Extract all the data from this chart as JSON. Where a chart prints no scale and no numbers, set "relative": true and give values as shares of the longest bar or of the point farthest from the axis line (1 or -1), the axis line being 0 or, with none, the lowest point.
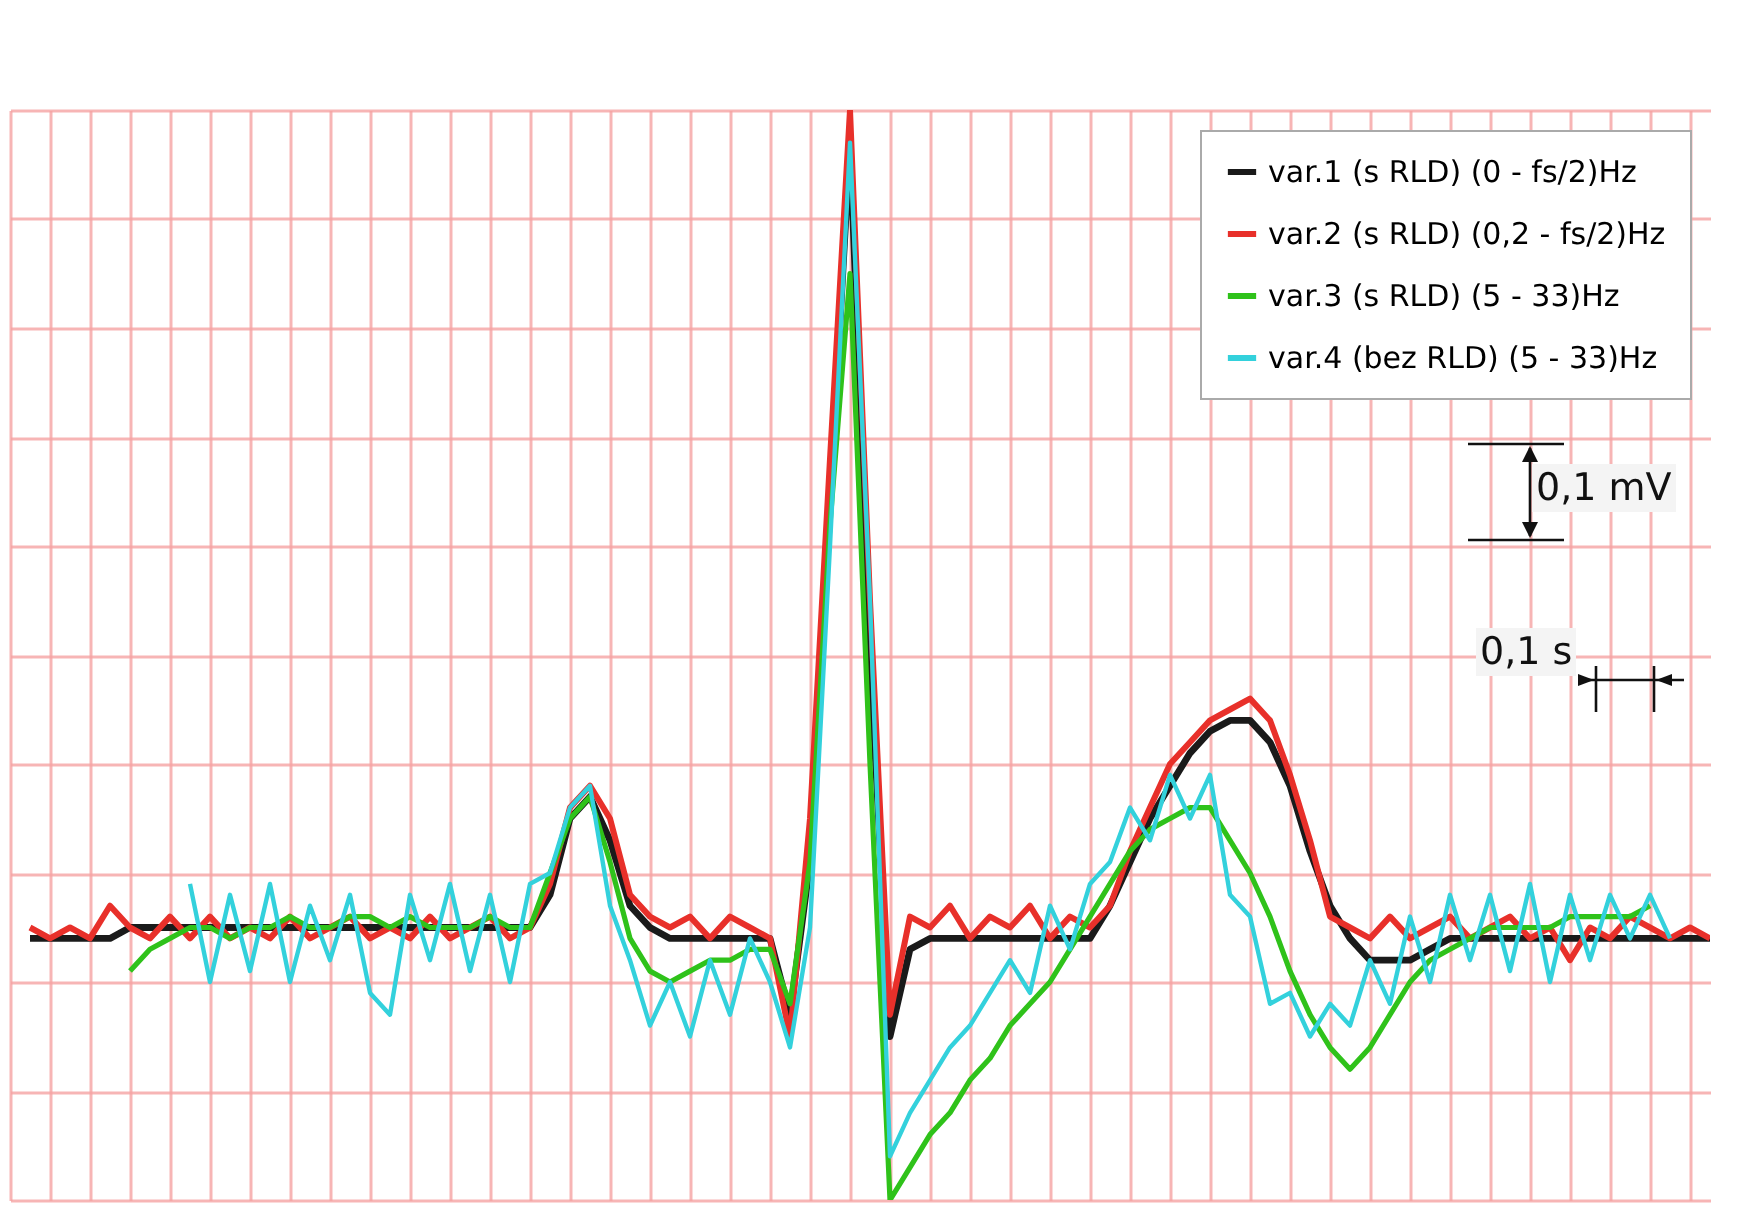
{
  "chart_data": {
    "type": "line",
    "relative": true,
    "grid": true,
    "legend": "top right",
    "categories": [
      null,
      null,
      null,
      null,
      null,
      null,
      null,
      null,
      null,
      null,
      null,
      null,
      null,
      null,
      null,
      null,
      null,
      null,
      null,
      null,
      null,
      null,
      null,
      null,
      null,
      null,
      null,
      null,
      null,
      null,
      null,
      null,
      null,
      null,
      null,
      null,
      null,
      null,
      null,
      null,
      null,
      null,
      null,
      null,
      null,
      null,
      null,
      null,
      null,
      null,
      null,
      null,
      null,
      null,
      null,
      null,
      null,
      null,
      null,
      null,
      null,
      null,
      null,
      null,
      null,
      null,
      null,
      null,
      null,
      null,
      null,
      null,
      null,
      null,
      null,
      null,
      null,
      null,
      null,
      null,
      null,
      null,
      null,
      null,
      null,
      null
    ],
    "series": [
      {
        "name": "var.1 (s RLD) (0 - fs/2)Hz",
        "color": "#1a1a1a",
        "values": [
          null,
          0.24,
          0.24,
          0.24,
          0.24,
          0.24,
          0.25,
          0.25,
          0.25,
          0.25,
          0.25,
          0.25,
          0.25,
          0.25,
          0.25,
          0.25,
          0.25,
          0.25,
          0.25,
          0.25,
          0.25,
          0.25,
          0.25,
          0.25,
          0.25,
          0.25,
          0.25,
          0.28,
          0.35,
          0.37,
          0.33,
          0.27,
          0.25,
          0.24,
          0.24,
          0.24,
          0.24,
          0.24,
          0.24,
          0.17,
          0.31,
          0.64,
          0.97,
          0.5,
          0.15,
          0.23,
          0.24,
          0.24,
          0.24,
          0.24,
          0.24,
          0.24,
          0.24,
          0.24,
          0.24,
          0.27,
          0.31,
          0.35,
          0.38,
          0.41,
          0.43,
          0.44,
          0.44,
          0.42,
          0.38,
          0.32,
          0.27,
          0.24,
          0.22,
          0.22,
          0.22,
          0.23,
          0.24,
          0.24,
          0.24,
          0.24,
          0.24,
          0.24,
          0.24,
          0.24,
          0.24,
          0.24,
          0.24,
          0.24,
          0.24,
          0.24
        ]
      },
      {
        "name": "var.2 (s RLD) (0,2 - fs/2)Hz",
        "color": "#e8302a",
        "values": [
          null,
          0.25,
          0.24,
          0.25,
          0.24,
          0.27,
          0.25,
          0.24,
          0.26,
          0.24,
          0.26,
          0.24,
          0.25,
          0.24,
          0.26,
          0.24,
          0.25,
          0.26,
          0.24,
          0.25,
          0.24,
          0.26,
          0.24,
          0.25,
          0.26,
          0.24,
          0.25,
          0.29,
          0.36,
          0.38,
          0.35,
          0.28,
          0.26,
          0.25,
          0.26,
          0.24,
          0.26,
          0.25,
          0.24,
          0.15,
          0.35,
          0.68,
          1.0,
          0.55,
          0.17,
          0.26,
          0.25,
          0.27,
          0.24,
          0.26,
          0.25,
          0.27,
          0.24,
          0.26,
          0.25,
          0.27,
          0.32,
          0.36,
          0.4,
          0.42,
          0.44,
          0.45,
          0.46,
          0.44,
          0.39,
          0.33,
          0.26,
          0.25,
          0.24,
          0.26,
          0.24,
          0.25,
          0.26,
          0.24,
          0.25,
          0.26,
          0.24,
          0.25,
          0.22,
          0.25,
          0.24,
          0.26,
          0.25,
          0.24,
          0.25,
          0.24
        ]
      },
      {
        "name": "var.3 (s RLD) (5 - 33)Hz",
        "color": "#2fc21a",
        "values": [
          null,
          null,
          null,
          null,
          null,
          null,
          0.21,
          0.23,
          0.24,
          0.25,
          0.25,
          0.24,
          0.25,
          0.25,
          0.26,
          0.25,
          0.25,
          0.26,
          0.26,
          0.25,
          0.26,
          0.25,
          0.25,
          0.25,
          0.26,
          0.25,
          0.25,
          0.3,
          0.35,
          0.37,
          0.31,
          0.24,
          0.21,
          0.2,
          0.21,
          0.22,
          0.22,
          0.23,
          0.23,
          0.18,
          0.31,
          0.62,
          0.85,
          0.4,
          0.0,
          0.03,
          0.06,
          0.08,
          0.11,
          0.13,
          0.16,
          0.18,
          0.2,
          0.23,
          0.26,
          0.29,
          0.32,
          0.34,
          0.35,
          0.36,
          0.36,
          0.33,
          0.3,
          0.26,
          0.21,
          0.17,
          0.14,
          0.12,
          0.14,
          0.17,
          0.2,
          0.22,
          0.23,
          0.24,
          0.25,
          0.25,
          0.25,
          0.25,
          0.26,
          0.26,
          0.26,
          0.26,
          0.27,
          null,
          null,
          null
        ]
      },
      {
        "name": "var.4 (bez RLD) (5 - 33)Hz",
        "color": "#33d1dc",
        "values": [
          null,
          null,
          null,
          null,
          null,
          null,
          null,
          null,
          null,
          0.29,
          0.2,
          0.28,
          0.21,
          0.29,
          0.2,
          0.27,
          0.22,
          0.28,
          0.19,
          0.17,
          0.28,
          0.22,
          0.29,
          0.21,
          0.28,
          0.2,
          0.29,
          0.3,
          0.36,
          0.38,
          0.27,
          0.22,
          0.16,
          0.2,
          0.15,
          0.22,
          0.17,
          0.24,
          0.2,
          0.14,
          0.25,
          0.6,
          0.97,
          0.55,
          0.04,
          0.08,
          0.11,
          0.14,
          0.16,
          0.19,
          0.22,
          0.19,
          0.27,
          0.23,
          0.29,
          0.31,
          0.36,
          0.33,
          0.39,
          0.35,
          0.39,
          0.28,
          0.26,
          0.18,
          0.19,
          0.15,
          0.18,
          0.16,
          0.22,
          0.18,
          0.26,
          0.2,
          0.28,
          0.22,
          0.28,
          0.21,
          0.29,
          0.2,
          0.28,
          0.22,
          0.28,
          0.24,
          0.28,
          0.24,
          null,
          null
        ]
      }
    ],
    "annotations": [
      "0,1 mV",
      "0,1 s"
    ]
  }
}
